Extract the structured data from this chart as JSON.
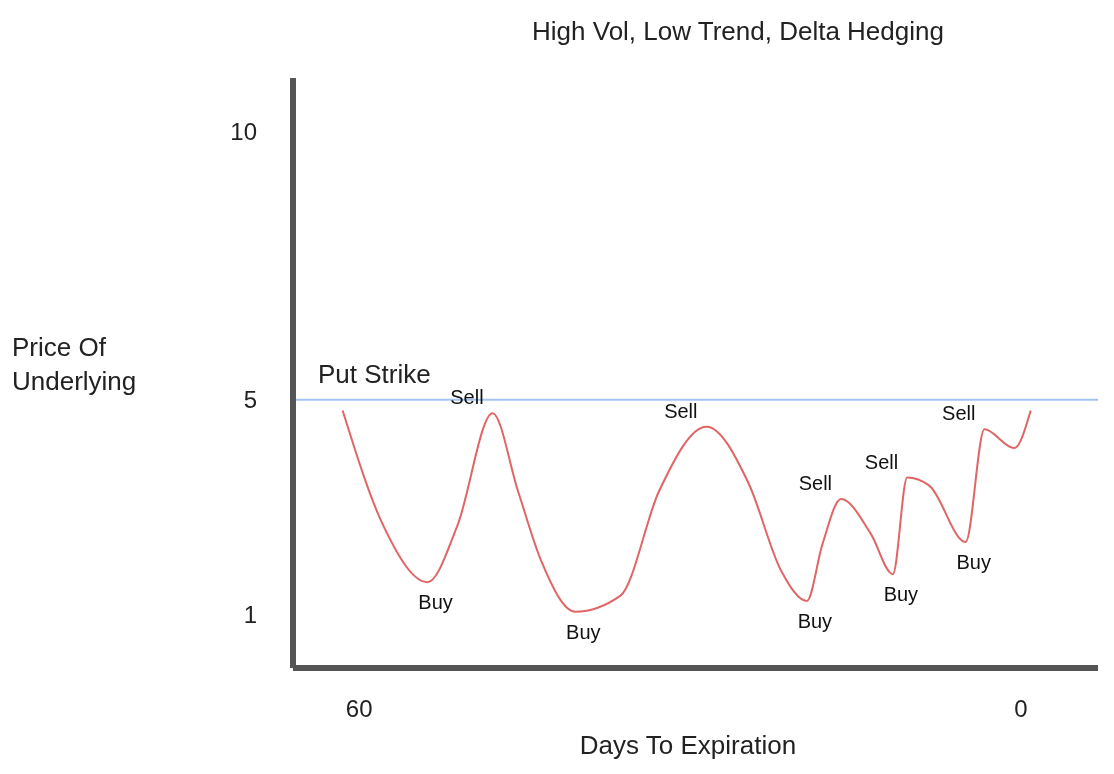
{
  "chart_data": {
    "type": "line",
    "title": "High Vol, Low Trend, Delta Hedging",
    "xlabel": "Days To Expiration",
    "ylabel": "Price Of Underlying",
    "x": [
      61.5,
      57.8,
      53.8,
      51.1,
      47.9,
      45.6,
      43.5,
      40.4,
      36.3,
      32.8,
      28.5,
      24.7,
      21.7,
      19.4,
      18.0,
      16.3,
      13.6,
      11.6,
      10.3,
      8.3,
      5.0,
      3.3,
      0.6,
      -0.9
    ],
    "series": [
      {
        "color": "#e06666",
        "values": [
          4.8,
          2.65,
          1.6,
          2.65,
          4.75,
          3.3,
          2.0,
          1.05,
          1.35,
          3.3,
          4.5,
          3.45,
          1.8,
          1.25,
          2.3,
          3.15,
          2.5,
          1.75,
          3.55,
          3.4,
          2.35,
          4.45,
          4.1,
          4.8
        ]
      }
    ],
    "xlim": [
      66,
      -7
    ],
    "xticks": [
      60,
      0
    ],
    "ylim": [
      0,
      11
    ],
    "yticks": [
      1,
      5,
      10
    ],
    "grid": false,
    "legend": false,
    "marker": "none",
    "line_style": "solid",
    "ref_lines": [
      {
        "axis": "y",
        "value": 5,
        "label": "Put Strike",
        "color": "#a4c2f4"
      }
    ],
    "annotations": [
      {
        "text": "Buy",
        "x": 53.8,
        "y": 1.6
      },
      {
        "text": "Sell",
        "x": 47.9,
        "y": 4.75
      },
      {
        "text": "Buy",
        "x": 40.4,
        "y": 1.05
      },
      {
        "text": "Sell",
        "x": 28.5,
        "y": 4.5
      },
      {
        "text": "Buy",
        "x": 19.4,
        "y": 1.25
      },
      {
        "text": "Sell",
        "x": 16.3,
        "y": 3.15
      },
      {
        "text": "Buy",
        "x": 11.6,
        "y": 1.75
      },
      {
        "text": "Sell",
        "x": 10.3,
        "y": 3.55
      },
      {
        "text": "Buy",
        "x": 5.0,
        "y": 2.35
      },
      {
        "text": "Sell",
        "x": 3.3,
        "y": 4.45
      }
    ]
  }
}
